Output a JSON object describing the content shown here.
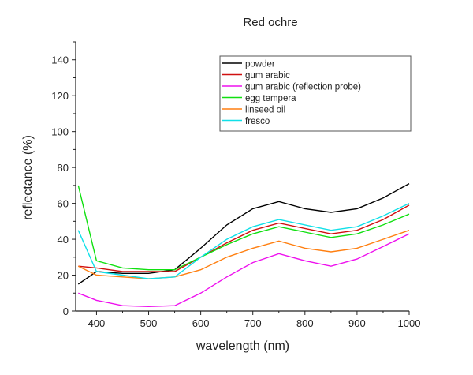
{
  "chart_data": {
    "type": "line",
    "title": "Red ochre",
    "xlabel": "wavelength (nm)",
    "ylabel": "reflectance (%)",
    "xlim": [
      360,
      1000
    ],
    "ylim": [
      0,
      150
    ],
    "xticks": [
      400,
      500,
      600,
      700,
      800,
      900,
      1000
    ],
    "yticks": [
      0,
      20,
      40,
      60,
      80,
      100,
      120,
      140
    ],
    "grid": false,
    "legend_position": "top-right",
    "x": [
      365,
      400,
      450,
      500,
      550,
      600,
      650,
      700,
      750,
      800,
      850,
      900,
      950,
      1000
    ],
    "series": [
      {
        "name": "powder",
        "color": "#000000",
        "values": [
          15,
          22,
          21,
          21,
          23,
          35,
          48,
          57,
          61,
          57,
          55,
          57,
          63,
          71
        ]
      },
      {
        "name": "gum arabic",
        "color": "#d01010",
        "values": [
          25,
          24,
          22,
          22,
          22,
          30,
          38,
          45,
          49,
          46,
          43,
          45,
          51,
          59
        ]
      },
      {
        "name": "gum arabic (reflection probe)",
        "color": "#ee10ee",
        "values": [
          10,
          6,
          3,
          2.5,
          3,
          10,
          19,
          27,
          32,
          28,
          25,
          29,
          36,
          43
        ]
      },
      {
        "name": "egg tempera",
        "color": "#10e010",
        "values": [
          70,
          28,
          24,
          23,
          23,
          30,
          37,
          43,
          47,
          44,
          41,
          43,
          48,
          54
        ]
      },
      {
        "name": "linseed oil",
        "color": "#ff7f10",
        "values": [
          25,
          20,
          19,
          18,
          19,
          23,
          30,
          35,
          39,
          35,
          33,
          35,
          40,
          45
        ]
      },
      {
        "name": "fresco",
        "color": "#10e0e8",
        "values": [
          45,
          22,
          20,
          18,
          19,
          30,
          40,
          47,
          51,
          48,
          45,
          47,
          53,
          60
        ]
      }
    ]
  }
}
